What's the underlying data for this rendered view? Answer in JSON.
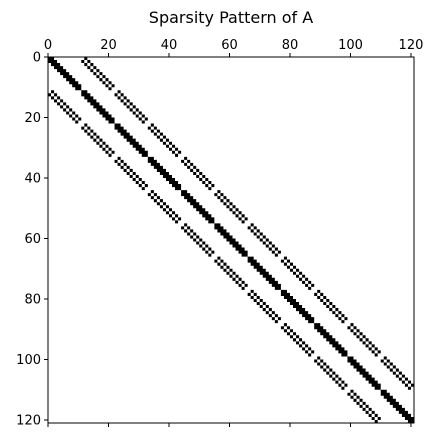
{
  "chart_data": {
    "type": "heatmap",
    "title": "Sparsity Pattern of A",
    "matrix_shape": [
      121,
      121
    ],
    "x_ticks": [
      0,
      20,
      40,
      60,
      80,
      100,
      120
    ],
    "y_ticks": [
      0,
      20,
      40,
      60,
      80,
      100,
      120
    ],
    "xlim": [
      0,
      121
    ],
    "ylim": [
      121,
      0
    ],
    "xaxis_position": "top",
    "grid": false,
    "nonzero_color": "#000000",
    "background_color": "#ffffff",
    "structure": {
      "description": "block tridiagonal, 11x11 blocks of size 11",
      "block_size": 11,
      "blocks": 11,
      "main_diagonal_offsets": [
        -1,
        0,
        1
      ],
      "off_diagonal_block_offsets": [
        -11,
        11
      ],
      "off_diagonal_band_offsets": [
        -12,
        -10,
        10,
        12
      ]
    }
  }
}
